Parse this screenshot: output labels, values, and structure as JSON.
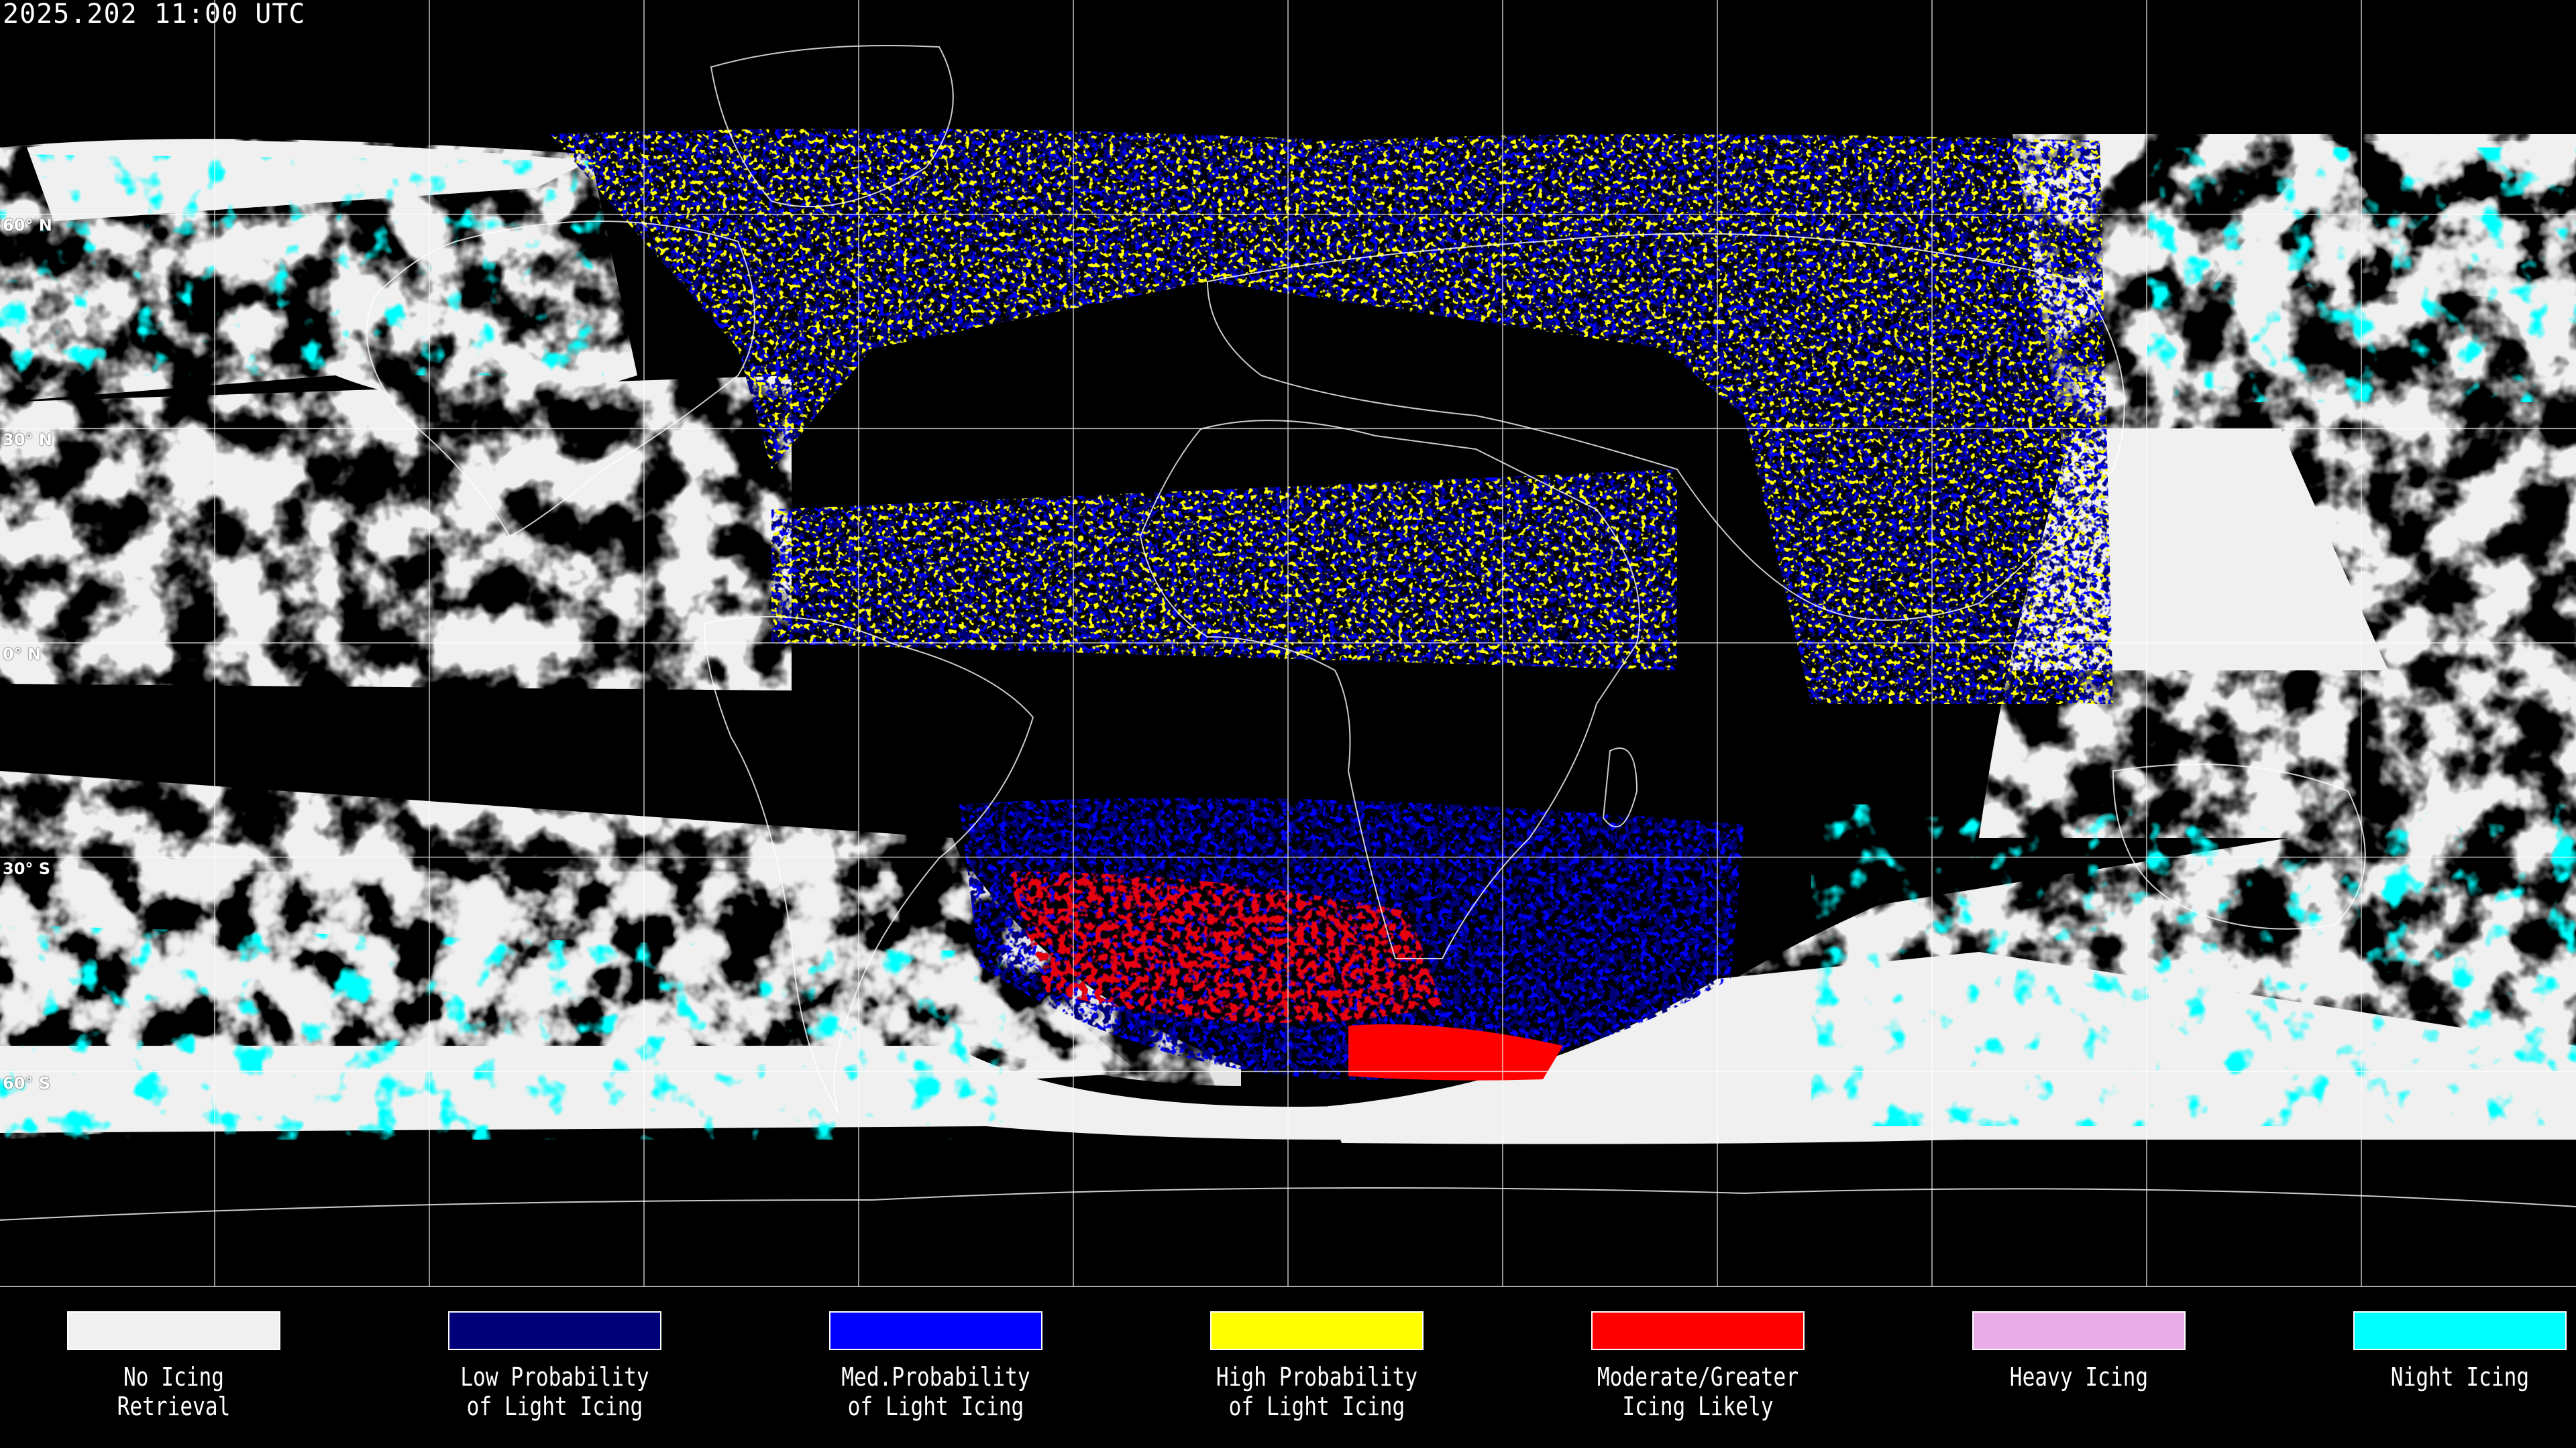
{
  "header": {
    "timestamp": "2025.202 11:00 UTC"
  },
  "map": {
    "projection": "equirectangular",
    "graticule_interval_deg": 30,
    "background_color": "#000000",
    "coastline_color": "#ffffff",
    "latitude_labels": [
      "60° N",
      "30° N",
      "0° N",
      "30° S",
      "60° S"
    ]
  },
  "legend": {
    "items": [
      {
        "label": "No Icing\nRetrieval",
        "color": "#f0f0f0"
      },
      {
        "label": "Low Probability\nof Light Icing",
        "color": "#000078"
      },
      {
        "label": "Med.Probability\nof Light Icing",
        "color": "#0000ff"
      },
      {
        "label": "High Probability\nof Light Icing",
        "color": "#ffff00"
      },
      {
        "label": "Moderate/Greater\nIcing Likely",
        "color": "#ff0000"
      },
      {
        "label": "Heavy Icing",
        "color": "#e8ace6"
      },
      {
        "label": "Night Icing",
        "color": "#00ffff"
      }
    ]
  }
}
